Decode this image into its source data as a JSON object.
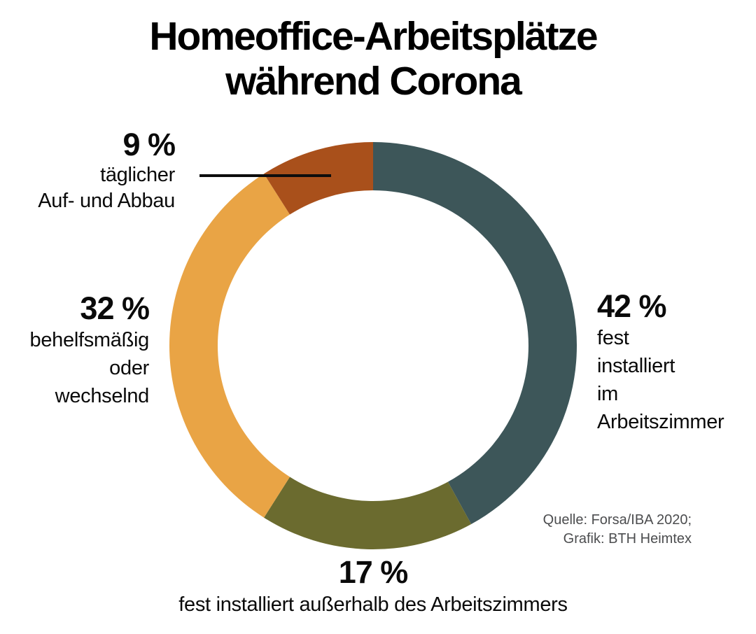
{
  "title": {
    "line1": "Homeoffice-Arbeitsplätze",
    "line2": "während Corona"
  },
  "chart_data": {
    "type": "pie",
    "subtype": "donut",
    "title": "Homeoffice-Arbeitsplätze während Corona",
    "unit": "%",
    "start_angle_deg": 0,
    "direction": "clockwise",
    "segments": [
      {
        "label": "fest installiert im Arbeitszimmer",
        "value": 42,
        "color": "#3D5659"
      },
      {
        "label": "fest installiert außerhalb des Arbeitszimmers",
        "value": 17,
        "color": "#6B6B2F"
      },
      {
        "label": "behelfsmäßig oder wechselnd",
        "value": 32,
        "color": "#E9A445"
      },
      {
        "label": "täglicher Auf- und Abbau",
        "value": 9,
        "color": "#A9501B"
      }
    ]
  },
  "labels": {
    "daily": {
      "value": "9 %",
      "lines": [
        "täglicher",
        "Auf- und Abbau"
      ]
    },
    "makeshift": {
      "value": "32 %",
      "lines": [
        "behelfsmäßig",
        "oder",
        "wechselnd"
      ]
    },
    "fixed_office": {
      "value": "42 %",
      "lines": [
        "fest",
        "installiert",
        "im",
        "Arbeitszimmer"
      ]
    },
    "fixed_outside": {
      "value": "17 %",
      "lines": [
        "fest installiert außerhalb des Arbeitszimmers"
      ]
    }
  },
  "source": {
    "line1": "Quelle: Forsa/IBA 2020;",
    "line2": "Grafik: BTH Heimtex"
  }
}
